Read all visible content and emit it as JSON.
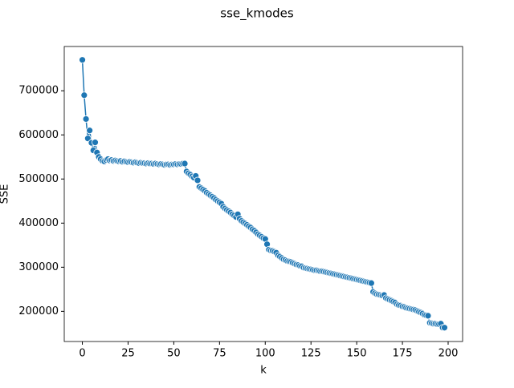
{
  "chart_data": {
    "type": "line",
    "title": "sse_kmodes",
    "xlabel": "k",
    "ylabel": "SSE",
    "x": [
      0,
      1,
      2,
      3,
      4,
      5,
      6,
      7,
      8,
      9,
      10,
      11,
      12,
      13,
      14,
      15,
      16,
      17,
      18,
      19,
      20,
      21,
      22,
      23,
      24,
      25,
      26,
      27,
      28,
      29,
      30,
      31,
      32,
      33,
      34,
      35,
      36,
      37,
      38,
      39,
      40,
      41,
      42,
      43,
      44,
      45,
      46,
      47,
      48,
      49,
      50,
      51,
      52,
      53,
      54,
      55,
      56,
      57,
      58,
      59,
      60,
      61,
      62,
      63,
      64,
      65,
      66,
      67,
      68,
      69,
      70,
      71,
      72,
      73,
      74,
      75,
      76,
      77,
      78,
      79,
      80,
      81,
      82,
      83,
      84,
      85,
      86,
      87,
      88,
      89,
      90,
      91,
      92,
      93,
      94,
      95,
      96,
      97,
      98,
      99,
      100,
      101,
      102,
      103,
      104,
      105,
      106,
      107,
      108,
      109,
      110,
      111,
      112,
      113,
      114,
      115,
      116,
      117,
      118,
      119,
      120,
      121,
      122,
      123,
      124,
      125,
      126,
      127,
      128,
      129,
      130,
      131,
      132,
      133,
      134,
      135,
      136,
      137,
      138,
      139,
      140,
      141,
      142,
      143,
      144,
      145,
      146,
      147,
      148,
      149,
      150,
      151,
      152,
      153,
      154,
      155,
      156,
      157,
      158,
      159,
      160,
      161,
      162,
      163,
      164,
      165,
      166,
      167,
      168,
      169,
      170,
      171,
      172,
      173,
      174,
      175,
      176,
      177,
      178,
      179,
      180,
      181,
      182,
      183,
      184,
      185,
      186,
      187,
      188,
      189,
      190,
      191,
      192,
      193,
      194,
      195,
      196,
      197,
      198
    ],
    "series": [
      {
        "color": "#1f77b4",
        "values": [
          770000,
          690000,
          636000,
          592000,
          610000,
          582000,
          565000,
          583000,
          560000,
          550000,
          545000,
          541000,
          540000,
          543000,
          545000,
          542000,
          543000,
          541000,
          542000,
          541000,
          540000,
          541000,
          539000,
          540000,
          539000,
          538000,
          539000,
          538000,
          537000,
          538000,
          537000,
          536000,
          537000,
          536000,
          536000,
          535000,
          536000,
          535000,
          535000,
          534000,
          535000,
          534000,
          533000,
          534000,
          533000,
          532000,
          533000,
          533000,
          532000,
          533000,
          533000,
          534000,
          533000,
          534000,
          534000,
          535000,
          535000,
          517000,
          513000,
          510000,
          506000,
          503000,
          507000,
          497000,
          482000,
          479000,
          476000,
          473000,
          469000,
          466000,
          463000,
          460000,
          457000,
          453000,
          450000,
          447000,
          444000,
          437000,
          433000,
          430000,
          427000,
          424000,
          420000,
          417000,
          414000,
          420000,
          410000,
          405000,
          402000,
          399000,
          396000,
          393000,
          390000,
          386000,
          383000,
          379000,
          375000,
          372000,
          369000,
          366000,
          364000,
          352000,
          340000,
          338000,
          337000,
          335000,
          333000,
          327000,
          324000,
          321000,
          318000,
          316000,
          314000,
          313000,
          312000,
          310000,
          308000,
          306000,
          305000,
          303000,
          302000,
          299000,
          298000,
          297000,
          296000,
          295000,
          294000,
          293000,
          293000,
          292000,
          291000,
          291000,
          290000,
          289000,
          288000,
          287000,
          286000,
          285000,
          284000,
          283000,
          282000,
          281000,
          280000,
          279000,
          278000,
          277000,
          276000,
          275000,
          274000,
          273000,
          272000,
          271000,
          270000,
          269000,
          268000,
          267000,
          266000,
          265000,
          264000,
          244000,
          241000,
          239000,
          238000,
          237000,
          236000,
          237000,
          230000,
          228000,
          226000,
          224000,
          222000,
          220000,
          216000,
          214000,
          213000,
          211000,
          210000,
          208000,
          207000,
          206000,
          205000,
          204000,
          203000,
          201000,
          199000,
          197000,
          195000,
          192000,
          191000,
          190000,
          174000,
          173000,
          172000,
          172000,
          171000,
          171000,
          172000,
          163000,
          163000
        ]
      }
    ],
    "xlim": [
      -9.9,
      207.9
    ],
    "ylim": [
      131600,
      800400
    ],
    "xticks": [
      0,
      25,
      50,
      75,
      100,
      125,
      150,
      175,
      200
    ],
    "yticks": [
      200000,
      300000,
      400000,
      500000,
      600000,
      700000
    ]
  }
}
